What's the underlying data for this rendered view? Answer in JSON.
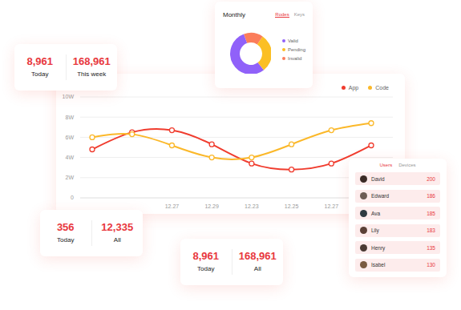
{
  "chart_data": [
    {
      "type": "pie",
      "title": "Monthly",
      "tabs": [
        "Rodes",
        "Keys"
      ],
      "categories": [
        "Valid",
        "Pending",
        "Invalid"
      ],
      "values": [
        55,
        30,
        15
      ],
      "colors": [
        "#9061f9",
        "#fbbf24",
        "#fb7d5b"
      ],
      "legend": "right"
    },
    {
      "type": "line",
      "categories": [
        null,
        null,
        "12.27",
        "12.29",
        "12.23",
        "12.25",
        "12.27",
        null
      ],
      "series": [
        {
          "name": "App",
          "color": "#f03c2e",
          "values": [
            4.8,
            6.5,
            6.7,
            5.3,
            3.4,
            2.8,
            3.4,
            5.2
          ]
        },
        {
          "name": "Code",
          "color": "#fbb829",
          "values": [
            6.0,
            6.3,
            5.2,
            4.0,
            4.0,
            5.3,
            6.7,
            7.4
          ]
        }
      ],
      "ylim": [
        0,
        10
      ],
      "yticks": [
        {
          "value": 0,
          "label": "0"
        },
        {
          "value": 2,
          "label": "2W"
        },
        {
          "value": 4,
          "label": "4W"
        },
        {
          "value": 6,
          "label": "6W"
        },
        {
          "value": 8,
          "label": "8W"
        },
        {
          "value": 10,
          "label": "10W"
        }
      ],
      "grid": true,
      "legend": "top right",
      "marker": "circle"
    }
  ],
  "stat_cards": [
    {
      "items": [
        {
          "value": "8,961",
          "label": "Today"
        },
        {
          "value": "168,961",
          "label": "This week"
        }
      ]
    },
    {
      "items": [
        {
          "value": "356",
          "label": "Today"
        },
        {
          "value": "12,335",
          "label": "All"
        }
      ]
    },
    {
      "items": [
        {
          "value": "8,961",
          "label": "Today"
        },
        {
          "value": "168,961",
          "label": "All"
        }
      ]
    }
  ],
  "users_panel": {
    "tabs": [
      "Users",
      "Devices"
    ],
    "rows": [
      {
        "name": "David",
        "value": 200
      },
      {
        "name": "Edward",
        "value": 186
      },
      {
        "name": "Ava",
        "value": 185
      },
      {
        "name": "Lily",
        "value": 183
      },
      {
        "name": "Henry",
        "value": 135
      },
      {
        "name": "Isabel",
        "value": 130
      }
    ]
  }
}
